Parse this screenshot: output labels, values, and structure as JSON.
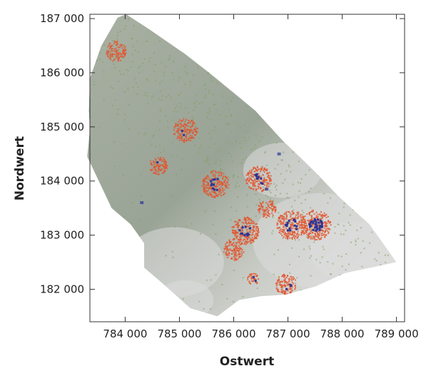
{
  "chart_data": {
    "type": "heatmap",
    "title": "",
    "xlabel": "Ostwert",
    "ylabel": "Nordwert",
    "xlim": [
      783350,
      789150
    ],
    "ylim": [
      181400,
      187080
    ],
    "x_ticks": [
      784000,
      785000,
      786000,
      787000,
      788000,
      789000
    ],
    "y_ticks": [
      182000,
      183000,
      184000,
      185000,
      186000,
      187000
    ],
    "x_tick_labels": [
      "784 000",
      "785 000",
      "786 000",
      "787 000",
      "788 000",
      "789 000"
    ],
    "y_tick_labels": [
      "182 000",
      "183 000",
      "184 000",
      "185 000",
      "186 000",
      "187 000"
    ],
    "grid": false,
    "legend": "none",
    "colors": {
      "terrain_light": "#e4e4e4",
      "terrain_dark": "#8e948c",
      "green": "#7fa05e",
      "red": "#e2552e",
      "blue": "#2c3597"
    },
    "region_boundary": [
      [
        783860,
        187020
      ],
      [
        784020,
        187080
      ],
      [
        784450,
        186800
      ],
      [
        785100,
        186350
      ],
      [
        785550,
        186000
      ],
      [
        786000,
        185630
      ],
      [
        786400,
        185300
      ],
      [
        786900,
        184750
      ],
      [
        787450,
        184220
      ],
      [
        787950,
        183700
      ],
      [
        788500,
        183200
      ],
      [
        789000,
        182500
      ],
      [
        788050,
        182300
      ],
      [
        787500,
        182050
      ],
      [
        786950,
        181900
      ],
      [
        786500,
        181870
      ],
      [
        786100,
        181800
      ],
      [
        785700,
        181500
      ],
      [
        785200,
        181650
      ],
      [
        784700,
        182100
      ],
      [
        784350,
        182400
      ],
      [
        784350,
        182850
      ],
      [
        784100,
        183200
      ],
      [
        783750,
        183500
      ],
      [
        783300,
        184450
      ],
      [
        783350,
        184950
      ],
      [
        783330,
        185300
      ],
      [
        783350,
        185900
      ],
      [
        783560,
        186500
      ]
    ],
    "clusters": [
      {
        "x": 783820,
        "y": 186410,
        "r": 190,
        "blue": 0
      },
      {
        "x": 785100,
        "y": 184950,
        "r": 220,
        "blue": 2
      },
      {
        "x": 784600,
        "y": 184300,
        "r": 170,
        "blue": 1
      },
      {
        "x": 785650,
        "y": 183950,
        "r": 250,
        "blue": 10
      },
      {
        "x": 786450,
        "y": 184050,
        "r": 240,
        "blue": 9
      },
      {
        "x": 786600,
        "y": 183500,
        "r": 170,
        "blue": 0
      },
      {
        "x": 786200,
        "y": 183100,
        "r": 260,
        "blue": 12
      },
      {
        "x": 786000,
        "y": 182750,
        "r": 200,
        "blue": 0
      },
      {
        "x": 787050,
        "y": 183200,
        "r": 270,
        "blue": 14
      },
      {
        "x": 787500,
        "y": 183200,
        "r": 280,
        "blue": 34
      },
      {
        "x": 786950,
        "y": 182100,
        "r": 200,
        "blue": 3
      },
      {
        "x": 786350,
        "y": 182200,
        "r": 110,
        "blue": 2
      }
    ],
    "isolated_blue": [
      [
        784300,
        183600
      ],
      [
        787600,
        184200
      ],
      [
        786830,
        184500
      ],
      [
        786600,
        183850
      ]
    ]
  }
}
